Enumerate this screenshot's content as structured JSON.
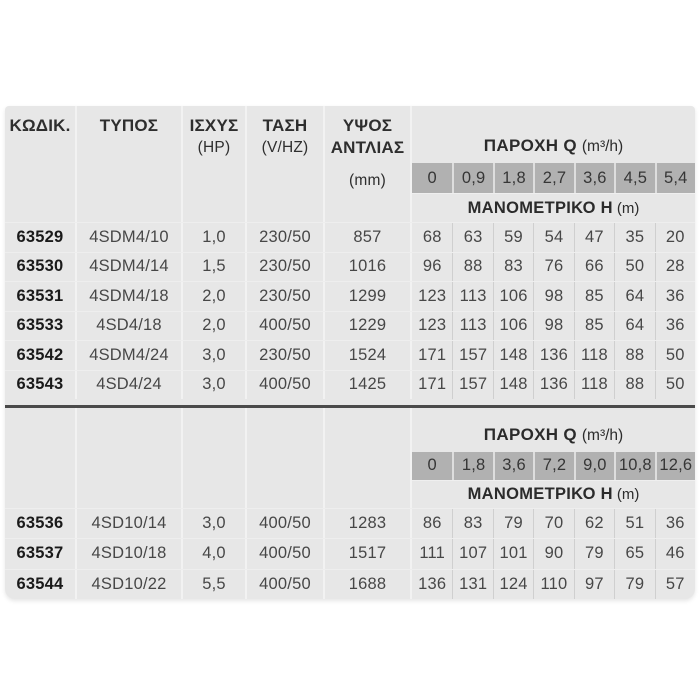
{
  "colors": {
    "table_background": "#e7e7e7",
    "flow_row_background": "#b1b1b1",
    "separator_line": "#4a4a4a",
    "header_text": "#2e2e2e",
    "data_text": "#474747"
  },
  "table": {
    "columns": [
      {
        "label": "ΚΩΔΙΚ.",
        "sub": ""
      },
      {
        "label": "ΤΥΠΟΣ",
        "sub": ""
      },
      {
        "label": "ΙΣΧΥΣ",
        "sub": "(HP)"
      },
      {
        "label": "ΤΑΣΗ",
        "sub": "(V/HZ)"
      },
      {
        "label": "ΥΨΟΣ ΑΝΤΛΙΑΣ",
        "sub": "(mm)"
      }
    ],
    "flow_header": {
      "title": "ΠΑΡΟΧΗ Q",
      "unit": "(m³/h)"
    },
    "head_header": {
      "title": "ΜΑΝΟΜΕΤΡΙΚΟ H",
      "unit": "(m)"
    },
    "sections": [
      {
        "flow_values": [
          "0",
          "0,9",
          "1,8",
          "2,7",
          "3,6",
          "4,5",
          "5,4"
        ],
        "rows": [
          {
            "code": "63529",
            "type": "4SDM4/10",
            "hp": "1,0",
            "voltage": "230/50",
            "height": "857",
            "head": [
              "68",
              "63",
              "59",
              "54",
              "47",
              "35",
              "20"
            ]
          },
          {
            "code": "63530",
            "type": "4SDM4/14",
            "hp": "1,5",
            "voltage": "230/50",
            "height": "1016",
            "head": [
              "96",
              "88",
              "83",
              "76",
              "66",
              "50",
              "28"
            ]
          },
          {
            "code": "63531",
            "type": "4SDM4/18",
            "hp": "2,0",
            "voltage": "230/50",
            "height": "1299",
            "head": [
              "123",
              "113",
              "106",
              "98",
              "85",
              "64",
              "36"
            ]
          },
          {
            "code": "63533",
            "type": "4SD4/18",
            "hp": "2,0",
            "voltage": "400/50",
            "height": "1229",
            "head": [
              "123",
              "113",
              "106",
              "98",
              "85",
              "64",
              "36"
            ]
          },
          {
            "code": "63542",
            "type": "4SDM4/24",
            "hp": "3,0",
            "voltage": "230/50",
            "height": "1524",
            "head": [
              "171",
              "157",
              "148",
              "136",
              "118",
              "88",
              "50"
            ]
          },
          {
            "code": "63543",
            "type": "4SD4/24",
            "hp": "3,0",
            "voltage": "400/50",
            "height": "1425",
            "head": [
              "171",
              "157",
              "148",
              "136",
              "118",
              "88",
              "50"
            ]
          }
        ]
      },
      {
        "flow_values": [
          "0",
          "1,8",
          "3,6",
          "7,2",
          "9,0",
          "10,8",
          "12,6"
        ],
        "rows": [
          {
            "code": "63536",
            "type": "4SD10/14",
            "hp": "3,0",
            "voltage": "400/50",
            "height": "1283",
            "head": [
              "86",
              "83",
              "79",
              "70",
              "62",
              "51",
              "36"
            ]
          },
          {
            "code": "63537",
            "type": "4SD10/18",
            "hp": "4,0",
            "voltage": "400/50",
            "height": "1517",
            "head": [
              "111",
              "107",
              "101",
              "90",
              "79",
              "65",
              "46"
            ]
          },
          {
            "code": "63544",
            "type": "4SD10/22",
            "hp": "5,5",
            "voltage": "400/50",
            "height": "1688",
            "head": [
              "136",
              "131",
              "124",
              "110",
              "97",
              "79",
              "57"
            ]
          }
        ]
      }
    ]
  }
}
